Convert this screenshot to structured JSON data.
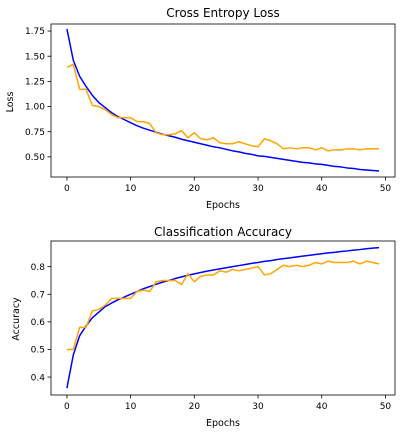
{
  "chart_data": [
    {
      "type": "line",
      "title": "Cross Entropy Loss",
      "xlabel": "Epochs",
      "ylabel": "Loss",
      "xlim": [
        -2.5,
        51.5
      ],
      "ylim": [
        0.3,
        1.82
      ],
      "xticks": [
        0,
        10,
        20,
        30,
        40,
        50
      ],
      "yticks": [
        0.5,
        0.75,
        1.0,
        1.25,
        1.5,
        1.75
      ],
      "ytick_labels": [
        "0.50",
        "0.75",
        "1.00",
        "1.25",
        "1.50",
        "1.75"
      ],
      "grid": false,
      "x": [
        0,
        1,
        2,
        3,
        4,
        5,
        6,
        7,
        8,
        9,
        10,
        11,
        12,
        13,
        14,
        15,
        16,
        17,
        18,
        19,
        20,
        21,
        22,
        23,
        24,
        25,
        26,
        27,
        28,
        29,
        30,
        31,
        32,
        33,
        34,
        35,
        36,
        37,
        38,
        39,
        40,
        41,
        42,
        43,
        44,
        45,
        46,
        47,
        48,
        49
      ],
      "series": [
        {
          "color": "#0000ff",
          "values": [
            1.77,
            1.46,
            1.3,
            1.2,
            1.11,
            1.04,
            0.99,
            0.94,
            0.9,
            0.87,
            0.84,
            0.81,
            0.785,
            0.765,
            0.745,
            0.725,
            0.71,
            0.695,
            0.675,
            0.66,
            0.645,
            0.63,
            0.615,
            0.6,
            0.59,
            0.575,
            0.56,
            0.55,
            0.535,
            0.525,
            0.51,
            0.505,
            0.495,
            0.485,
            0.475,
            0.465,
            0.455,
            0.445,
            0.44,
            0.43,
            0.425,
            0.415,
            0.405,
            0.4,
            0.39,
            0.385,
            0.375,
            0.37,
            0.365,
            0.36
          ]
        },
        {
          "color": "#ffa500",
          "values": [
            1.39,
            1.42,
            1.17,
            1.17,
            1.01,
            1.0,
            0.97,
            0.92,
            0.89,
            0.89,
            0.89,
            0.85,
            0.85,
            0.83,
            0.74,
            0.72,
            0.72,
            0.73,
            0.76,
            0.69,
            0.74,
            0.68,
            0.67,
            0.69,
            0.64,
            0.63,
            0.63,
            0.65,
            0.63,
            0.61,
            0.6,
            0.68,
            0.66,
            0.63,
            0.58,
            0.59,
            0.58,
            0.59,
            0.59,
            0.57,
            0.59,
            0.56,
            0.57,
            0.57,
            0.58,
            0.58,
            0.57,
            0.58,
            0.58,
            0.58
          ]
        }
      ]
    },
    {
      "type": "line",
      "title": "Classification Accuracy",
      "xlabel": "Epochs",
      "ylabel": "Accuracy",
      "xlim": [
        -2.5,
        51.5
      ],
      "ylim": [
        0.335,
        0.893
      ],
      "xticks": [
        0,
        10,
        20,
        30,
        40,
        50
      ],
      "yticks": [
        0.4,
        0.5,
        0.6,
        0.7,
        0.8
      ],
      "ytick_labels": [
        "0.4",
        "0.5",
        "0.6",
        "0.7",
        "0.8"
      ],
      "grid": false,
      "x": [
        0,
        1,
        2,
        3,
        4,
        5,
        6,
        7,
        8,
        9,
        10,
        11,
        12,
        13,
        14,
        15,
        16,
        17,
        18,
        19,
        20,
        21,
        22,
        23,
        24,
        25,
        26,
        27,
        28,
        29,
        30,
        31,
        32,
        33,
        34,
        35,
        36,
        37,
        38,
        39,
        40,
        41,
        42,
        43,
        44,
        45,
        46,
        47,
        48,
        49
      ],
      "series": [
        {
          "color": "#0000ff",
          "values": [
            0.36,
            0.48,
            0.55,
            0.585,
            0.615,
            0.635,
            0.655,
            0.668,
            0.68,
            0.69,
            0.7,
            0.71,
            0.72,
            0.728,
            0.736,
            0.744,
            0.75,
            0.757,
            0.763,
            0.769,
            0.774,
            0.779,
            0.784,
            0.788,
            0.792,
            0.796,
            0.8,
            0.804,
            0.808,
            0.812,
            0.815,
            0.819,
            0.822,
            0.826,
            0.829,
            0.832,
            0.835,
            0.838,
            0.841,
            0.844,
            0.847,
            0.85,
            0.852,
            0.855,
            0.857,
            0.86,
            0.862,
            0.865,
            0.867,
            0.869
          ]
        },
        {
          "color": "#ffa500",
          "values": [
            0.5,
            0.5,
            0.58,
            0.58,
            0.64,
            0.645,
            0.66,
            0.685,
            0.685,
            0.685,
            0.685,
            0.71,
            0.715,
            0.71,
            0.745,
            0.75,
            0.75,
            0.75,
            0.735,
            0.775,
            0.745,
            0.765,
            0.77,
            0.77,
            0.785,
            0.78,
            0.79,
            0.785,
            0.79,
            0.795,
            0.8,
            0.77,
            0.775,
            0.79,
            0.805,
            0.8,
            0.805,
            0.8,
            0.805,
            0.815,
            0.81,
            0.82,
            0.815,
            0.815,
            0.815,
            0.82,
            0.81,
            0.82,
            0.815,
            0.81
          ]
        }
      ]
    }
  ]
}
